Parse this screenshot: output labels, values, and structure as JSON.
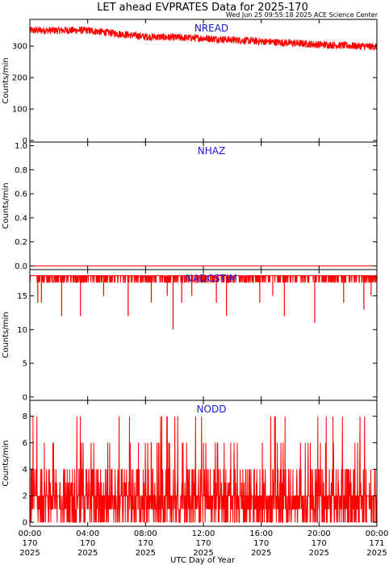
{
  "chart_data": {
    "type": "line",
    "title": "LET ahead EVPRATES Data for 2025-170",
    "subtitle": "Wed Jun 25 09:55:18 2025 ACE Science Center",
    "xlabel": "UTC Day of Year",
    "x_ticks": [
      {
        "time": "00:00",
        "doy": "170",
        "year": "2025"
      },
      {
        "time": "04:00",
        "doy": "170",
        "year": "2025"
      },
      {
        "time": "08:00",
        "doy": "170",
        "year": "2025"
      },
      {
        "time": "12:00",
        "doy": "170",
        "year": "2025"
      },
      {
        "time": "16:00",
        "doy": "170",
        "year": "2025"
      },
      {
        "time": "20:00",
        "doy": "170",
        "year": "2025"
      },
      {
        "time": "00:00",
        "doy": "171",
        "year": "2025"
      }
    ],
    "xlim_hours": [
      0,
      24
    ],
    "series_color": "#ff0000",
    "panels": [
      {
        "name": "NREAD",
        "ylabel": "Counts/min",
        "ylim": [
          -5,
          385
        ],
        "yticks": [
          0,
          100,
          200,
          300
        ],
        "ytick_labels": [
          "0",
          "100",
          "200",
          "300"
        ],
        "trend": [
          {
            "hour": 0,
            "value": 350
          },
          {
            "hour": 4,
            "value": 350
          },
          {
            "hour": 8,
            "value": 330
          },
          {
            "hour": 12,
            "value": 325
          },
          {
            "hour": 16,
            "value": 315
          },
          {
            "hour": 20,
            "value": 305
          },
          {
            "hour": 24,
            "value": 298
          }
        ],
        "noise": 12
      },
      {
        "name": "NHAZ",
        "ylabel": "Counts/min",
        "ylim": [
          -0.03,
          1.03
        ],
        "yticks": [
          0,
          0.2,
          0.4,
          0.6,
          0.8,
          1.0
        ],
        "ytick_labels": [
          "0.0",
          "0.2",
          "0.4",
          "0.6",
          "0.8",
          "1.0"
        ],
        "trend": [
          {
            "hour": 0,
            "value": 0
          },
          {
            "hour": 24,
            "value": 0
          }
        ],
        "noise": 0
      },
      {
        "name": "NADCSTIM",
        "ylabel": "Counts/min",
        "ylim": [
          -0.5,
          18.9
        ],
        "yticks": [
          0,
          5,
          10,
          15
        ],
        "ytick_labels": [
          "0",
          "5",
          "10",
          "15"
        ],
        "trend": [
          {
            "hour": 0,
            "value": 18
          },
          {
            "hour": 24,
            "value": 18
          }
        ],
        "noise": 0.6,
        "dips": [
          {
            "hour": 0.55,
            "value": 14
          },
          {
            "hour": 0.8,
            "value": 14
          },
          {
            "hour": 2.2,
            "value": 12
          },
          {
            "hour": 3.5,
            "value": 12
          },
          {
            "hour": 5.1,
            "value": 15
          },
          {
            "hour": 6.8,
            "value": 12
          },
          {
            "hour": 8.4,
            "value": 14
          },
          {
            "hour": 9.5,
            "value": 15
          },
          {
            "hour": 9.9,
            "value": 10
          },
          {
            "hour": 10.5,
            "value": 14
          },
          {
            "hour": 11.2,
            "value": 15
          },
          {
            "hour": 12.9,
            "value": 14
          },
          {
            "hour": 13.6,
            "value": 12
          },
          {
            "hour": 15.9,
            "value": 14
          },
          {
            "hour": 16.8,
            "value": 15
          },
          {
            "hour": 17.6,
            "value": 12
          },
          {
            "hour": 19.7,
            "value": 11
          },
          {
            "hour": 21.7,
            "value": 14
          },
          {
            "hour": 23.1,
            "value": 13
          },
          {
            "hour": 23.6,
            "value": 15
          }
        ]
      },
      {
        "name": "NODD",
        "ylabel": "Counts/min",
        "ylim": [
          -0.3,
          9.2
        ],
        "yticks": [
          0,
          2,
          4,
          6,
          8
        ],
        "ytick_labels": [
          "0",
          "2",
          "4",
          "6",
          "8"
        ],
        "trend": [
          {
            "hour": 0,
            "value": 2
          },
          {
            "hour": 24,
            "value": 2
          }
        ],
        "noise": 0
      }
    ]
  }
}
